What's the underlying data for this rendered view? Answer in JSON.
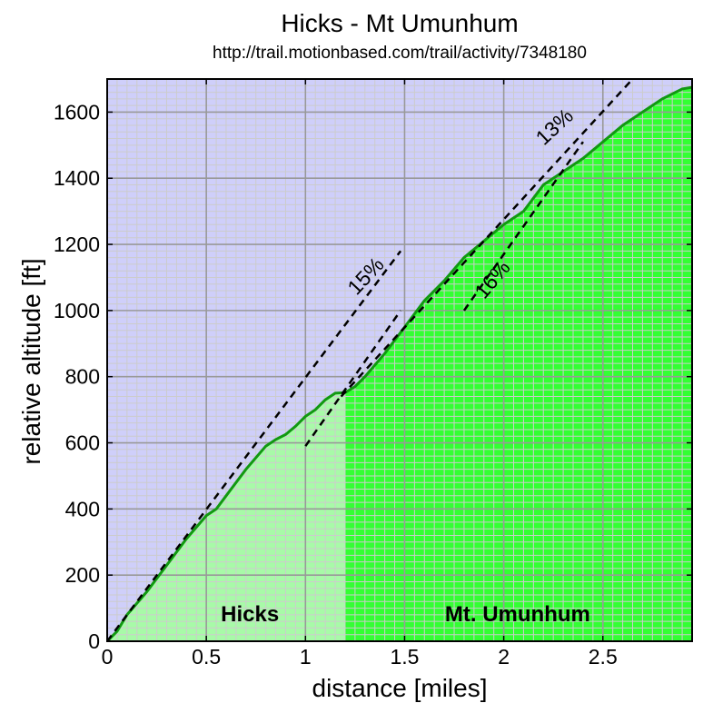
{
  "chart_data": {
    "type": "area",
    "title": "Hicks - Mt Umunhum",
    "subtitle": "http://trail.motionbased.com/trail/activity/7348180",
    "xlabel": "distance [miles]",
    "ylabel": "relative altitude [ft]",
    "xlim": [
      0,
      2.95
    ],
    "ylim": [
      0,
      1700
    ],
    "x_ticks": [
      "0",
      "0.5",
      "1",
      "1.5",
      "2",
      "2.5"
    ],
    "y_ticks": [
      "0",
      "200",
      "400",
      "600",
      "800",
      "1000",
      "1200",
      "1400",
      "1600"
    ],
    "grid": true,
    "background_color": "#cfcffa",
    "line_color": "#119911",
    "series": [
      {
        "name": "Hicks",
        "color": "#a8faa8",
        "x_range": [
          0,
          1.2
        ],
        "points": [
          [
            0,
            0
          ],
          [
            0.05,
            30
          ],
          [
            0.1,
            80
          ],
          [
            0.2,
            150
          ],
          [
            0.3,
            230
          ],
          [
            0.4,
            310
          ],
          [
            0.5,
            380
          ],
          [
            0.55,
            400
          ],
          [
            0.6,
            440
          ],
          [
            0.7,
            520
          ],
          [
            0.8,
            590
          ],
          [
            0.85,
            610
          ],
          [
            0.9,
            625
          ],
          [
            0.95,
            650
          ],
          [
            1.0,
            680
          ],
          [
            1.05,
            700
          ],
          [
            1.1,
            730
          ],
          [
            1.15,
            750
          ],
          [
            1.2,
            752
          ]
        ]
      },
      {
        "name": "Mt. Umunhum",
        "color": "#33ff33",
        "x_range": [
          1.2,
          2.95
        ],
        "points": [
          [
            1.2,
            752
          ],
          [
            1.25,
            770
          ],
          [
            1.3,
            800
          ],
          [
            1.4,
            870
          ],
          [
            1.5,
            950
          ],
          [
            1.6,
            1030
          ],
          [
            1.7,
            1090
          ],
          [
            1.8,
            1160
          ],
          [
            1.9,
            1210
          ],
          [
            2.0,
            1260
          ],
          [
            2.1,
            1300
          ],
          [
            2.2,
            1380
          ],
          [
            2.3,
            1420
          ],
          [
            2.4,
            1460
          ],
          [
            2.5,
            1510
          ],
          [
            2.6,
            1560
          ],
          [
            2.7,
            1600
          ],
          [
            2.8,
            1640
          ],
          [
            2.9,
            1670
          ],
          [
            2.95,
            1675
          ]
        ]
      }
    ],
    "grade_lines": [
      {
        "label": "15%",
        "x": [
          0,
          1.48
        ],
        "y": [
          0,
          1180
        ]
      },
      {
        "label": "15%",
        "x": [
          1.0,
          1.48
        ],
        "y": [
          590,
          1000
        ]
      },
      {
        "label": "16%",
        "x": [
          1.8,
          2.4
        ],
        "y": [
          1000,
          1510
        ]
      },
      {
        "label": "13%",
        "x": [
          1.18,
          2.65
        ],
        "y": [
          740,
          1700
        ]
      }
    ],
    "annotations": [
      {
        "text": "15%",
        "x": 1.33,
        "y": 1090,
        "angle": -47
      },
      {
        "text": "16%",
        "x": 1.97,
        "y": 1080,
        "angle": -50
      },
      {
        "text": "13%",
        "x": 2.28,
        "y": 1540,
        "angle": -43
      }
    ]
  }
}
